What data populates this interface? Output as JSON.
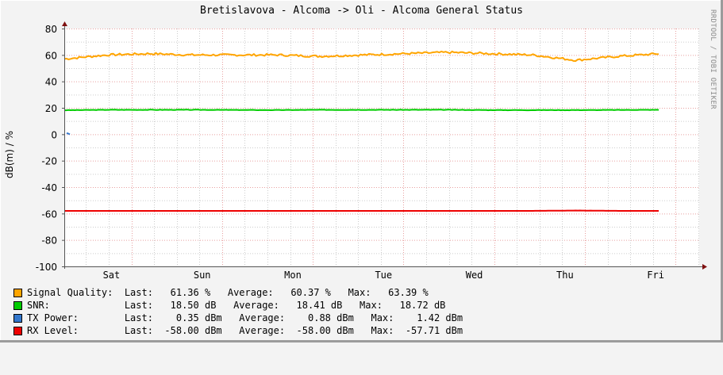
{
  "title": "Bretislavova - Alcoma -> Oli - Alcoma General Status",
  "watermark": "RRDTOOL / TOBI OETIKER",
  "y_axis_label": "dB(m) / %",
  "colors": {
    "signal_quality": "#FFA500",
    "snr": "#00CC00",
    "tx_power": "#3377CC",
    "rx_level": "#EE0000",
    "background": "#F3F3F3",
    "plot_background": "#FFFFFF",
    "major_grid": "#E8A0A0",
    "minor_grid": "#CCCCCC",
    "axis": "#555555",
    "arrow": "#7F1010"
  },
  "legend": [
    {
      "name": "Signal Quality:",
      "last": "61.36 %",
      "average": "60.37 %",
      "max": "63.39 %",
      "color": "#FFA500",
      "text": "Signal Quality:  Last:   61.36 %   Average:   60.37 %   Max:   63.39 %"
    },
    {
      "name": "SNR:",
      "last": "18.50 dB",
      "average": "18.41 dB",
      "max": "18.72 dB",
      "color": "#00CC00",
      "text": "SNR:             Last:   18.50 dB   Average:   18.41 dB   Max:   18.72 dB"
    },
    {
      "name": "TX Power:",
      "last": "0.35 dBm",
      "average": "0.88 dBm",
      "max": "1.42 dBm",
      "color": "#3377CC",
      "text": "TX Power:        Last:    0.35 dBm   Average:    0.88 dBm   Max:    1.42 dBm"
    },
    {
      "name": "RX Level:",
      "last": "-58.00 dBm",
      "average": "-58.00 dBm",
      "max": "-57.71 dBm",
      "color": "#EE0000",
      "text": "RX Level:        Last:  -58.00 dBm   Average:  -58.00 dBm   Max:  -57.71 dBm"
    }
  ],
  "chart_data": {
    "type": "line",
    "title": "Bretislavova - Alcoma -> Oli - Alcoma General Status",
    "xlabel": "",
    "ylabel": "dB(m) / %",
    "ylim": [
      -100,
      80
    ],
    "yticks": [
      80,
      60,
      40,
      20,
      0,
      -20,
      -40,
      -60,
      -80,
      -100
    ],
    "ytick_labels": [
      "80",
      "60",
      "40",
      "20",
      "0",
      "-20",
      "-40",
      "-60",
      "-80",
      "-100"
    ],
    "x_tick_labels": [
      "Sat",
      "Sun",
      "Mon",
      "Tue",
      "Wed",
      "Thu",
      "Fri"
    ],
    "grid": true,
    "legend_position": "bottom",
    "x": [
      0,
      0.5,
      1,
      1.5,
      2,
      2.5,
      3,
      3.5,
      4,
      4.5,
      5,
      5.5,
      6,
      6.5,
      7
    ],
    "series": [
      {
        "name": "Signal Quality",
        "unit": "%",
        "color": "#FFA500",
        "values": [
          57,
          60,
          61,
          60,
          60,
          60,
          59,
          60,
          61,
          62,
          61,
          60,
          56,
          59,
          61
        ],
        "last": 61.36,
        "average": 60.37,
        "max": 63.39
      },
      {
        "name": "SNR",
        "unit": "dB",
        "color": "#00CC00",
        "values": [
          18.2,
          18.5,
          18.5,
          18.5,
          18.4,
          18.3,
          18.5,
          18.5,
          18.5,
          18.5,
          18.3,
          18.3,
          18.3,
          18.4,
          18.5
        ],
        "last": 18.5,
        "average": 18.41,
        "max": 18.72
      },
      {
        "name": "TX Power",
        "unit": "dBm",
        "color": "#3377CC",
        "values": [
          0.9,
          null,
          null,
          null,
          null,
          null,
          null,
          null,
          null,
          null,
          null,
          null,
          null,
          null,
          null
        ],
        "last": 0.35,
        "average": 0.88,
        "max": 1.42
      },
      {
        "name": "RX Level",
        "unit": "dBm",
        "color": "#EE0000",
        "values": [
          -58,
          -58,
          -58,
          -58,
          -58,
          -58,
          -58,
          -58,
          -58,
          -58,
          -58,
          -58,
          -57.71,
          -58,
          -58
        ],
        "last": -58.0,
        "average": -58.0,
        "max": -57.71
      }
    ]
  }
}
